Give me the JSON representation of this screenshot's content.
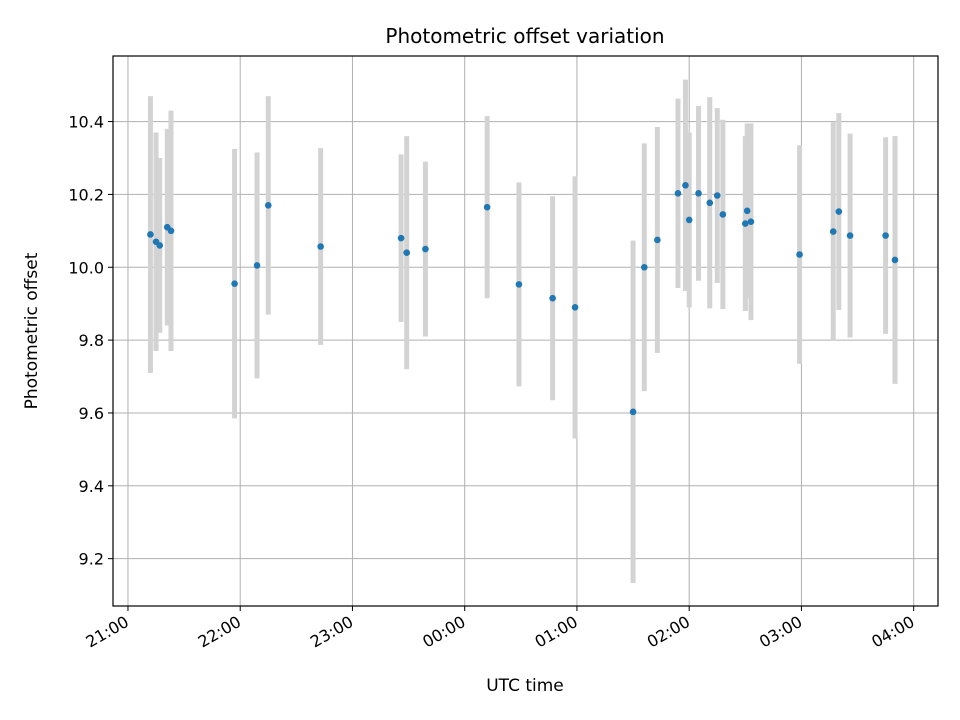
{
  "chart_data": {
    "type": "scatter",
    "title": "Photometric offset variation",
    "xlabel": "UTC time",
    "ylabel": "Photometric offset",
    "grid": true,
    "x_axis": "time",
    "xlim": [
      "20:52",
      "04:13"
    ],
    "ylim": [
      9.07,
      10.58
    ],
    "x_ticks": [
      "21:00",
      "22:00",
      "23:00",
      "00:00",
      "01:00",
      "02:00",
      "03:00",
      "04:00"
    ],
    "y_ticks": [
      "9.2",
      "9.4",
      "9.6",
      "9.8",
      "10.0",
      "10.2",
      "10.4"
    ],
    "marker_color": "#1f77b4",
    "errorbar_color": "#d3d3d3",
    "series": [
      {
        "points": [
          {
            "t": "21:12",
            "y": 10.09,
            "err": 0.38
          },
          {
            "t": "21:15",
            "y": 10.07,
            "err": 0.3
          },
          {
            "t": "21:17",
            "y": 10.06,
            "err": 0.24
          },
          {
            "t": "21:21",
            "y": 10.11,
            "err": 0.27
          },
          {
            "t": "21:23",
            "y": 10.1,
            "err": 0.33
          },
          {
            "t": "21:57",
            "y": 9.955,
            "err": 0.37
          },
          {
            "t": "22:09",
            "y": 10.005,
            "err": 0.31
          },
          {
            "t": "22:15",
            "y": 10.17,
            "err": 0.3
          },
          {
            "t": "22:43",
            "y": 10.057,
            "err": 0.27
          },
          {
            "t": "23:26",
            "y": 10.08,
            "err": 0.23
          },
          {
            "t": "23:29",
            "y": 10.04,
            "err": 0.32
          },
          {
            "t": "23:39",
            "y": 10.05,
            "err": 0.24
          },
          {
            "t": "00:12",
            "y": 10.165,
            "err": 0.25
          },
          {
            "t": "00:29",
            "y": 9.953,
            "err": 0.28
          },
          {
            "t": "00:47",
            "y": 9.915,
            "err": 0.28
          },
          {
            "t": "00:59",
            "y": 9.89,
            "err": 0.36
          },
          {
            "t": "01:30",
            "y": 9.603,
            "err": 0.47
          },
          {
            "t": "01:36",
            "y": 10.0,
            "err": 0.34
          },
          {
            "t": "01:43",
            "y": 10.075,
            "err": 0.31
          },
          {
            "t": "01:54",
            "y": 10.203,
            "err": 0.26
          },
          {
            "t": "01:58",
            "y": 10.225,
            "err": 0.29
          },
          {
            "t": "02:00",
            "y": 10.13,
            "err": 0.24
          },
          {
            "t": "02:05",
            "y": 10.203,
            "err": 0.24
          },
          {
            "t": "02:11",
            "y": 10.177,
            "err": 0.29
          },
          {
            "t": "02:15",
            "y": 10.197,
            "err": 0.24
          },
          {
            "t": "02:18",
            "y": 10.145,
            "err": 0.26
          },
          {
            "t": "02:30",
            "y": 10.12,
            "err": 0.24
          },
          {
            "t": "02:31",
            "y": 10.155,
            "err": 0.24
          },
          {
            "t": "02:33",
            "y": 10.125,
            "err": 0.27
          },
          {
            "t": "02:59",
            "y": 10.035,
            "err": 0.3
          },
          {
            "t": "03:17",
            "y": 10.098,
            "err": 0.3
          },
          {
            "t": "03:20",
            "y": 10.153,
            "err": 0.27
          },
          {
            "t": "03:26",
            "y": 10.087,
            "err": 0.28
          },
          {
            "t": "03:45",
            "y": 10.087,
            "err": 0.27
          },
          {
            "t": "03:50",
            "y": 10.02,
            "err": 0.34
          }
        ]
      }
    ]
  }
}
